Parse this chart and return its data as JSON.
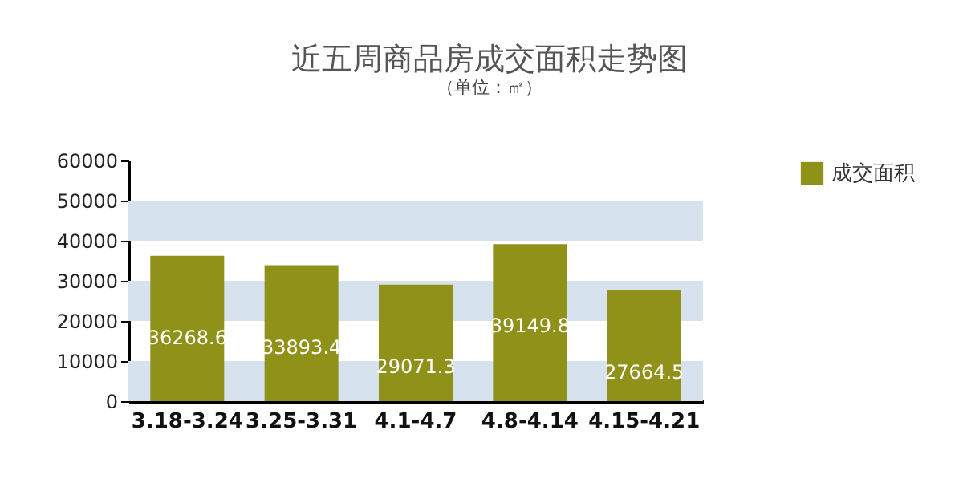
{
  "chart_data": {
    "type": "bar",
    "title": "近五周商品房成交面积走势图",
    "subtitle": "（单位：㎡）",
    "categories": [
      "3.18-3.24",
      "3.25-3.31",
      "4.1-4.7",
      "4.8-4.14",
      "4.15-4.21"
    ],
    "series": [
      {
        "name": "成交面积",
        "color": "#8f9119",
        "values": [
          36268.6,
          33893.4,
          29071.3,
          39149.8,
          27664.5
        ]
      }
    ],
    "ylim": [
      0,
      60000
    ],
    "yticks": [
      0,
      10000,
      20000,
      30000,
      40000,
      50000,
      60000
    ],
    "bands": [
      {
        "axis": "y",
        "from": 0,
        "to": 10000,
        "color": "#d6e2ed"
      },
      {
        "axis": "y",
        "from": 20000,
        "to": 30000,
        "color": "#d6e2ed"
      },
      {
        "axis": "y",
        "from": 40000,
        "to": 50000,
        "color": "#d6e2ed"
      }
    ],
    "data_labels": true,
    "legend": "right"
  }
}
